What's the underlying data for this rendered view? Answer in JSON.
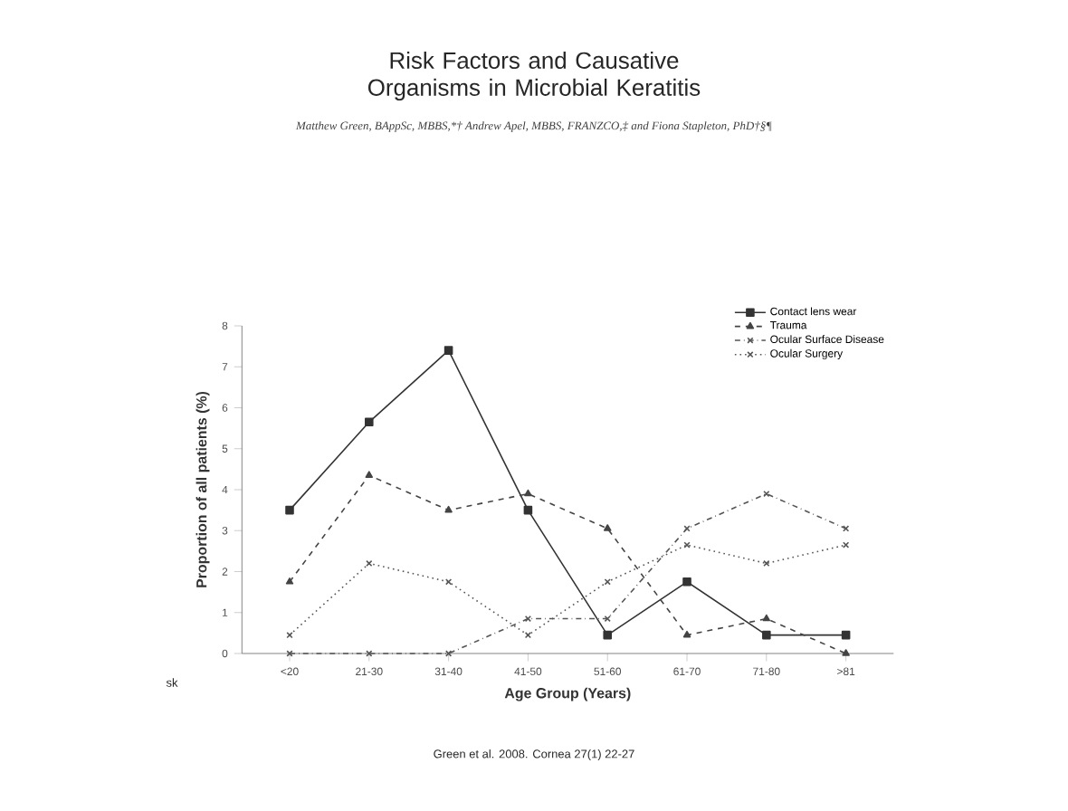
{
  "chart_data": {
    "type": "line",
    "title": "Risk Factors and Causative Organisms in Microbial Keratitis",
    "subtitle": "Matthew Green, BAppSc, MBBS,*† Andrew Apel, MBBS, FRANZCO,‡ and Fiona Stapleton, PhD†§¶",
    "xlabel": "Age Group (Years)",
    "ylabel": "Proportion of all patients (%)",
    "categories": [
      "<20",
      "21-30",
      "31-40",
      "41-50",
      "51-60",
      "61-70",
      "71-80",
      ">81"
    ],
    "ylim": [
      0,
      8
    ],
    "yticks": [
      0,
      1,
      2,
      3,
      4,
      5,
      6,
      7,
      8
    ],
    "legend": "top right",
    "annotations": [
      "sk",
      "Green et al. 2008. Cornea 27(1) 22-27"
    ],
    "series": [
      {
        "name": "Contact lens wear",
        "color": "#333333",
        "marker": "square",
        "line_style": "solid",
        "values": [
          3.5,
          5.65,
          7.4,
          3.5,
          0.45,
          1.75,
          0.45,
          0.45
        ]
      },
      {
        "name": "Trauma",
        "color": "#444444",
        "marker": "triangle",
        "line_style": "dashed",
        "values": [
          1.75,
          4.35,
          3.5,
          3.9,
          3.05,
          0.45,
          0.85,
          0
        ]
      },
      {
        "name": "Ocular Surface Disease",
        "color": "#555555",
        "marker": "cross",
        "line_style": "dashdot",
        "values": [
          0,
          0,
          0,
          0.85,
          0.85,
          3.05,
          3.9,
          3.05
        ]
      },
      {
        "name": "Ocular Surgery",
        "color": "#555555",
        "marker": "cross",
        "line_style": "dotted",
        "values": [
          0.45,
          2.2,
          1.75,
          0.45,
          1.75,
          2.65,
          2.2,
          2.65
        ]
      }
    ]
  }
}
